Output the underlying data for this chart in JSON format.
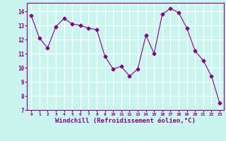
{
  "x": [
    0,
    1,
    2,
    3,
    4,
    5,
    6,
    7,
    8,
    9,
    10,
    11,
    12,
    13,
    14,
    15,
    16,
    17,
    18,
    19,
    20,
    21,
    22,
    23
  ],
  "y": [
    13.7,
    12.1,
    11.4,
    12.9,
    13.5,
    13.1,
    13.0,
    12.8,
    12.7,
    10.8,
    9.9,
    10.1,
    9.4,
    9.9,
    12.3,
    11.0,
    13.8,
    14.2,
    13.9,
    12.8,
    11.2,
    10.5,
    9.4,
    7.5
  ],
  "line_color": "#880088",
  "marker": "D",
  "markersize": 2.5,
  "linewidth": 0.8,
  "xlabel": "Windchill (Refroidissement éolien,°C)",
  "xlabel_fontsize": 6.5,
  "bg_color": "#caf5ee",
  "grid_color": "#ffffff",
  "tick_color": "#880088",
  "label_color": "#880088",
  "ylim": [
    7,
    14.6
  ],
  "xlim": [
    -0.5,
    23.5
  ],
  "yticks": [
    7,
    8,
    9,
    10,
    11,
    12,
    13,
    14
  ],
  "xticks": [
    0,
    1,
    2,
    3,
    4,
    5,
    6,
    7,
    8,
    9,
    10,
    11,
    12,
    13,
    14,
    15,
    16,
    17,
    18,
    19,
    20,
    21,
    22,
    23
  ],
  "xtick_labels": [
    "0",
    "1",
    "2",
    "3",
    "4",
    "5",
    "6",
    "7",
    "8",
    "9",
    "10",
    "11",
    "12",
    "13",
    "14",
    "15",
    "16",
    "17",
    "18",
    "19",
    "20",
    "21",
    "22",
    "23"
  ]
}
